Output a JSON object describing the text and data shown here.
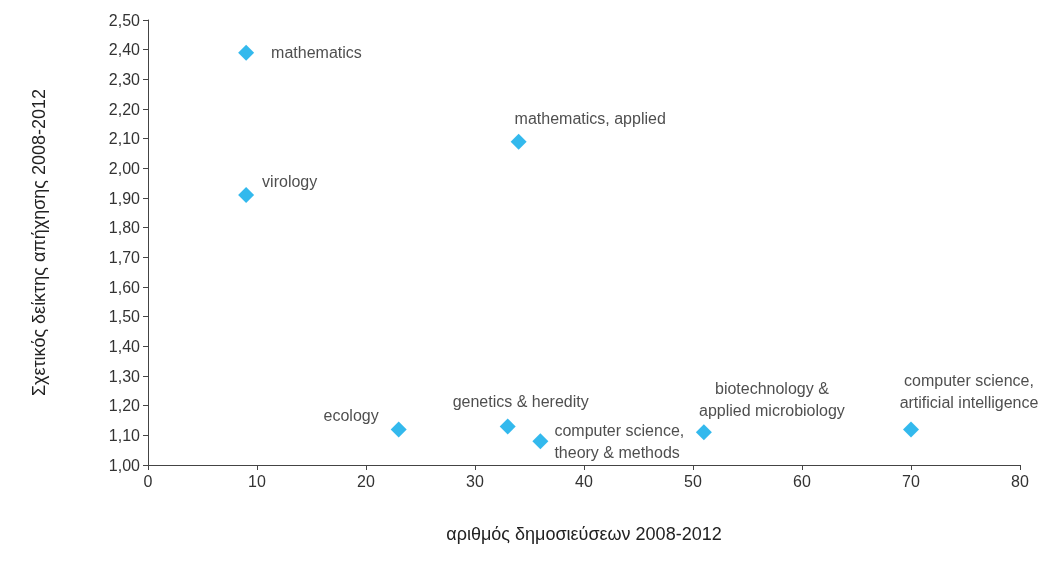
{
  "chart_data": {
    "type": "scatter",
    "xlabel": "αριθμός δημοσιεύσεων 2008-2012",
    "ylabel": "Σχετικός δείκτης απήχησης 2008-2012",
    "x": [
      9,
      9,
      34,
      23,
      33,
      36,
      51,
      70
    ],
    "values": [
      2.39,
      1.91,
      2.09,
      1.12,
      1.13,
      1.08,
      1.11,
      1.12
    ],
    "color": "#00a8e8",
    "marker": "diamond",
    "grid": false,
    "xlim": [
      0,
      80
    ],
    "xticks": [
      0,
      10,
      20,
      30,
      40,
      50,
      60,
      70,
      80
    ],
    "ylim": [
      1,
      2.5
    ],
    "yticks": [
      {
        "value": 1,
        "label": "1,00"
      },
      {
        "value": 1.1,
        "label": "1,10"
      },
      {
        "value": 1.2,
        "label": "1,20"
      },
      {
        "value": 1.3,
        "label": "1,30"
      },
      {
        "value": 1.4,
        "label": "1,40"
      },
      {
        "value": 1.5,
        "label": "1,50"
      },
      {
        "value": 1.6,
        "label": "1,60"
      },
      {
        "value": 1.7,
        "label": "1,70"
      },
      {
        "value": 1.8,
        "label": "1,80"
      },
      {
        "value": 1.9,
        "label": "1,90"
      },
      {
        "value": 2,
        "label": "2,00"
      },
      {
        "value": 2.1,
        "label": "2,10"
      },
      {
        "value": 2.2,
        "label": "2,20"
      },
      {
        "value": 2.3,
        "label": "2,30"
      },
      {
        "value": 2.4,
        "label": "2,40"
      },
      {
        "value": 2.5,
        "label": "2,50"
      }
    ],
    "annotations": [
      {
        "text": "mathematics",
        "x": 9,
        "y": 2.39
      },
      {
        "text": "virology",
        "x": 9,
        "y": 1.91
      },
      {
        "text": "mathematics, applied",
        "x": 34,
        "y": 2.09
      },
      {
        "text": "ecology",
        "x": 23,
        "y": 1.12
      },
      {
        "text": "genetics & heredity",
        "x": 33,
        "y": 1.13
      },
      {
        "text": "computer science,\ntheory & methods",
        "x": 36,
        "y": 1.08
      },
      {
        "text": "biotechnology &\napplied microbiology",
        "x": 51,
        "y": 1.11
      },
      {
        "text": "computer science,\nartificial intelligence",
        "x": 70,
        "y": 1.12
      }
    ]
  }
}
